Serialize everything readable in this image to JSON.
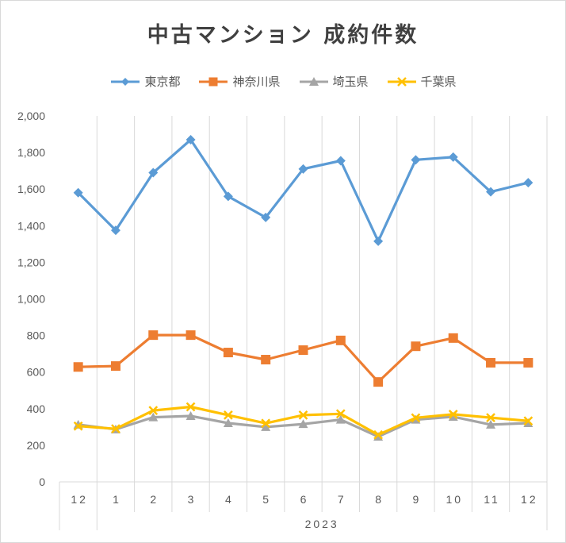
{
  "chart_data": {
    "type": "line",
    "title": "中古マンション 成約件数",
    "categories": [
      "12",
      "1",
      "2",
      "3",
      "4",
      "5",
      "6",
      "7",
      "8",
      "9",
      "10",
      "11",
      "12"
    ],
    "group_label": "2023",
    "ylim": [
      0,
      2000
    ],
    "yticks": [
      0,
      200,
      400,
      600,
      800,
      1000,
      1200,
      1400,
      1600,
      1800,
      2000
    ],
    "ytick_labels": [
      "0",
      "200",
      "400",
      "600",
      "800",
      "1,000",
      "1,200",
      "1,400",
      "1,600",
      "1,800",
      "2,000"
    ],
    "grid": "vertical",
    "legend_position": "top",
    "series": [
      {
        "name": "東京都",
        "color": "#5B9BD5",
        "marker": "diamond",
        "values": [
          1580,
          1375,
          1690,
          1870,
          1560,
          1445,
          1710,
          1755,
          1315,
          1760,
          1775,
          1585,
          1635
        ]
      },
      {
        "name": "神奈川県",
        "color": "#ED7D31",
        "marker": "square",
        "values": [
          628,
          633,
          802,
          802,
          707,
          668,
          720,
          773,
          546,
          741,
          786,
          651,
          651
        ]
      },
      {
        "name": "埼玉県",
        "color": "#A5A5A5",
        "marker": "triangle",
        "values": [
          313,
          287,
          353,
          360,
          321,
          300,
          316,
          340,
          247,
          340,
          356,
          313,
          321
        ]
      },
      {
        "name": "千葉県",
        "color": "#FFC000",
        "marker": "x",
        "values": [
          305,
          290,
          390,
          410,
          365,
          320,
          365,
          372,
          257,
          350,
          369,
          351,
          333
        ]
      }
    ]
  }
}
